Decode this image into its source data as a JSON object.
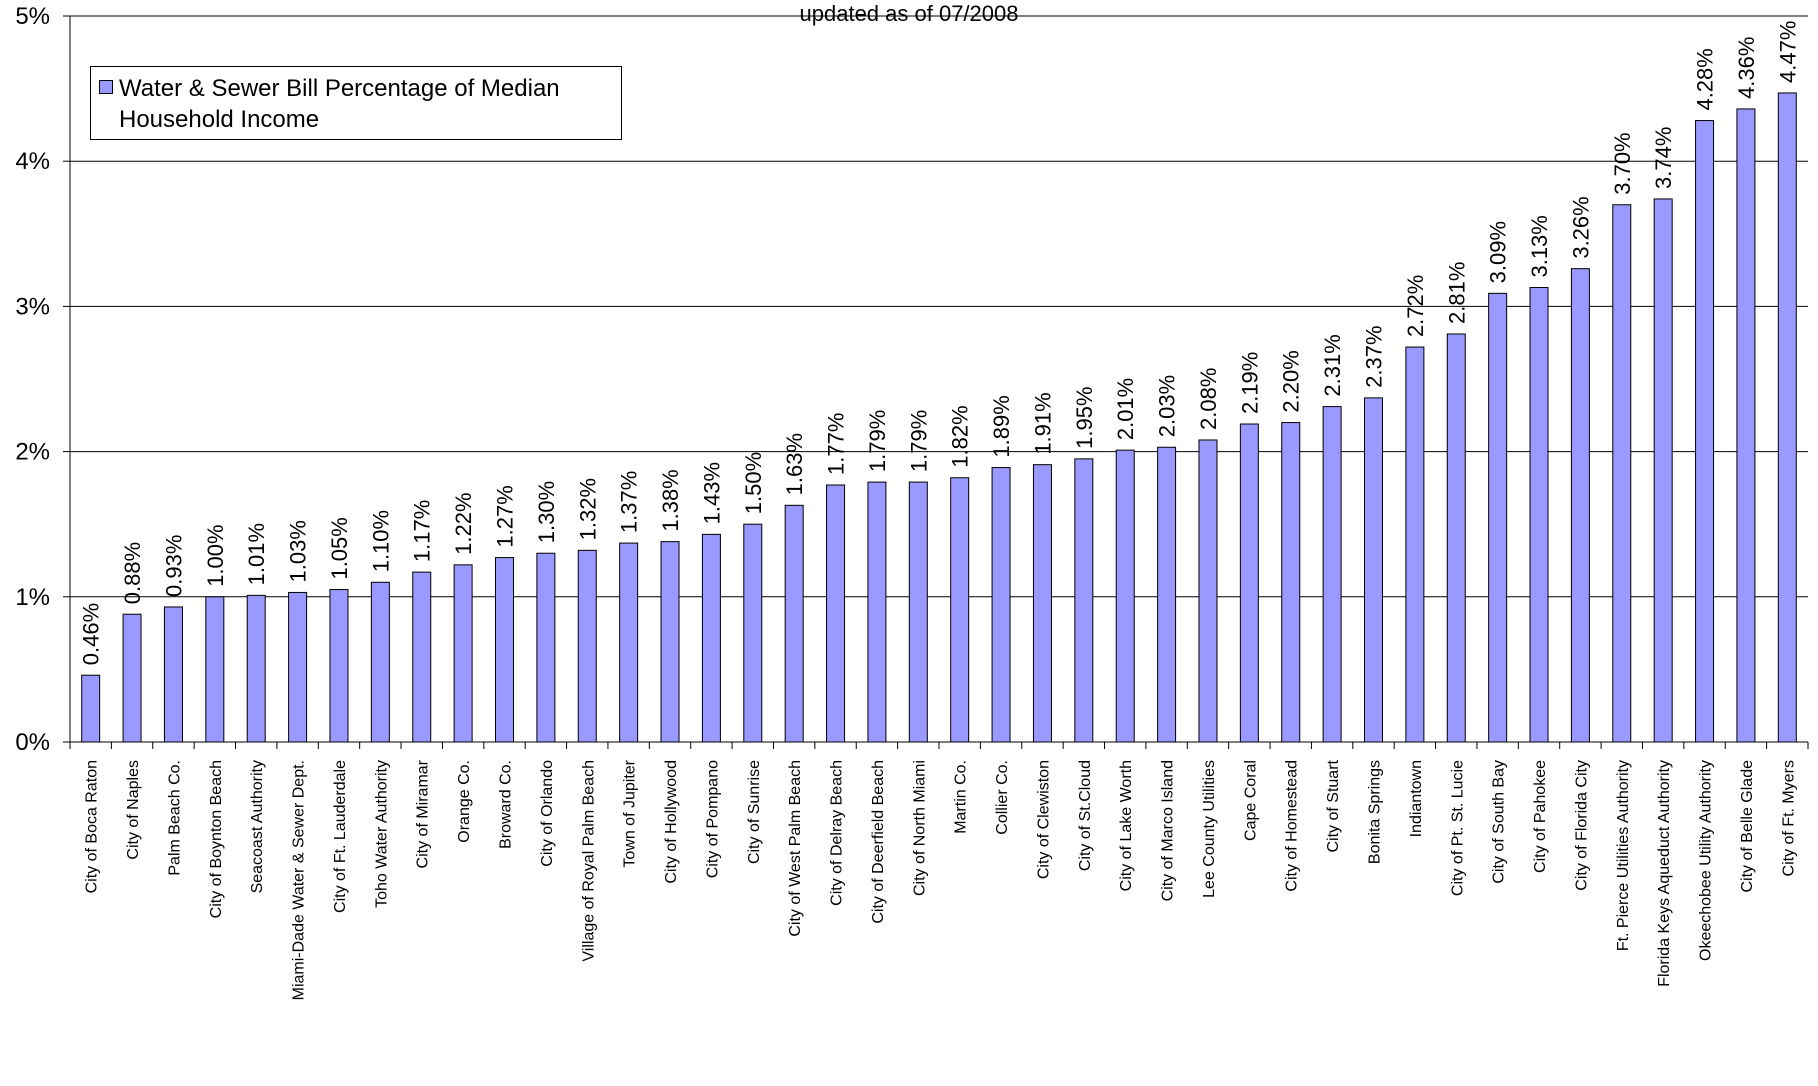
{
  "chart_data": {
    "type": "bar",
    "title": "",
    "subtitle": "updated as of 07/2008",
    "xlabel": "",
    "ylabel": "",
    "ylim": [
      0,
      5
    ],
    "y_ticks": [
      "0%",
      "1%",
      "2%",
      "3%",
      "4%",
      "5%"
    ],
    "grid": "horizontal",
    "legend_position": "top-left",
    "bar_color": "#9999ff",
    "categories": [
      "City of Boca Raton",
      "City of Naples",
      "Palm Beach Co.",
      "City of Boynton Beach",
      "Seacoast Authority",
      "Miami-Dade Water & Sewer Dept.",
      "City of Ft. Lauderdale",
      "Toho Water Authority",
      "City of Miramar",
      "Orange Co.",
      "Broward Co.",
      "City of Orlando",
      "Village of Royal Palm Beach",
      "Town of Jupiter",
      "City of Hollywood",
      "City of Pompano",
      "City of Sunrise",
      "City of West Palm Beach",
      "City of Delray Beach",
      "City of Deerfield Beach",
      "City of North Miami",
      "Martin Co.",
      "Collier Co.",
      "City of Clewiston",
      "City of St.Cloud",
      "City of Lake Worth",
      "City of Marco Island",
      "Lee County Utilities",
      "Cape Coral",
      "City of Homestead",
      "City of Stuart",
      "Bonita Springs",
      "Indiantown",
      "City of Pt. St. Lucie",
      "City of South Bay",
      "City of Pahokee",
      "City of Florida City",
      "Ft. Pierce Utilities Authority",
      "Florida Keys Aqueduct Authority",
      "Okeechobee Utility Authority",
      "City of Belle Glade",
      "City of Ft. Myers"
    ],
    "series": [
      {
        "name": "Water & Sewer Bill Percentage of Median Household Income",
        "values": [
          0.46,
          0.88,
          0.93,
          1.0,
          1.01,
          1.03,
          1.05,
          1.1,
          1.17,
          1.22,
          1.27,
          1.3,
          1.32,
          1.37,
          1.38,
          1.43,
          1.5,
          1.63,
          1.77,
          1.79,
          1.79,
          1.82,
          1.89,
          1.91,
          1.95,
          2.01,
          2.03,
          2.08,
          2.19,
          2.2,
          2.31,
          2.37,
          2.72,
          2.81,
          3.09,
          3.13,
          3.26,
          3.7,
          3.74,
          4.28,
          4.36,
          4.47
        ],
        "labels": [
          "0.46%",
          "0.88%",
          "0.93%",
          "1.00%",
          "1.01%",
          "1.03%",
          "1.05%",
          "1.10%",
          "1.17%",
          "1.22%",
          "1.27%",
          "1.30%",
          "1.32%",
          "1.37%",
          "1.38%",
          "1.43%",
          "1.50%",
          "1.63%",
          "1.77%",
          "1.79%",
          "1.79%",
          "1.82%",
          "1.89%",
          "1.91%",
          "1.95%",
          "2.01%",
          "2.03%",
          "2.08%",
          "2.19%",
          "2.20%",
          "2.31%",
          "2.37%",
          "2.72%",
          "2.81%",
          "3.09%",
          "3.13%",
          "3.26%",
          "3.70%",
          "3.74%",
          "4.28%",
          "4.36%",
          "4.47%"
        ]
      }
    ]
  },
  "legend": {
    "label": "Water & Sewer Bill Percentage of Median Household Income"
  }
}
